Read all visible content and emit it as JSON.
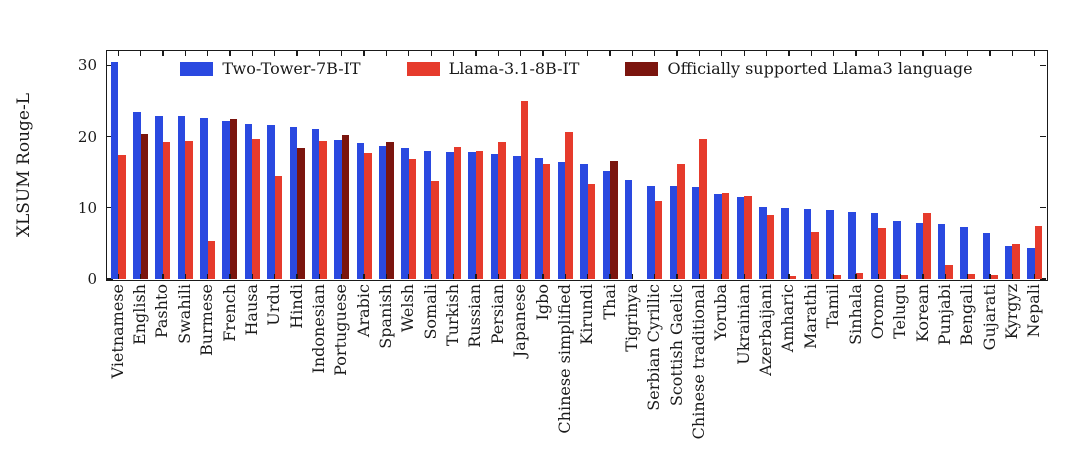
{
  "chart_data": {
    "type": "bar",
    "title": "",
    "ylabel": "XLSUM Rouge-L",
    "xlabel": "",
    "ylim": [
      0,
      32
    ],
    "yticks": [
      0,
      10,
      20,
      30
    ],
    "grid": false,
    "legend_position": "top-center",
    "legend": [
      {
        "label": "Two-Tower-7B-IT",
        "color": "#2a49e0"
      },
      {
        "label": "Llama-3.1-8B-IT",
        "color": "#e63b2c"
      },
      {
        "label": "Officially supported Llama3 language",
        "color": "#7b150e"
      }
    ],
    "categories": [
      "Vietnamese",
      "English",
      "Pashto",
      "Swahili",
      "Burmese",
      "French",
      "Hausa",
      "Urdu",
      "Hindi",
      "Indonesian",
      "Portuguese",
      "Arabic",
      "Spanish",
      "Welsh",
      "Somali",
      "Turkish",
      "Russian",
      "Persian",
      "Japanese",
      "Igbo",
      "Chinese simplified",
      "Kirundi",
      "Thai",
      "Tigrinya",
      "Serbian Cyrillic",
      "Scottish Gaelic",
      "Chinese traditional",
      "Yoruba",
      "Ukrainian",
      "Azerbaijani",
      "Amharic",
      "Marathi",
      "Tamil",
      "Sinhala",
      "Oromo",
      "Telugu",
      "Korean",
      "Punjabi",
      "Bengali",
      "Gujarati",
      "Kyrgyz",
      "Nepali"
    ],
    "series": [
      {
        "name": "Two-Tower-7B-IT",
        "color": "#2a49e0",
        "values": [
          30.5,
          23.4,
          22.9,
          22.9,
          22.6,
          22.2,
          21.7,
          21.6,
          21.4,
          21.0,
          19.5,
          19.1,
          18.7,
          18.4,
          18.0,
          17.8,
          17.8,
          17.5,
          17.2,
          17.0,
          16.4,
          16.2,
          15.1,
          13.9,
          13.1,
          13.0,
          12.9,
          11.9,
          11.5,
          10.1,
          9.9,
          9.8,
          9.7,
          9.4,
          9.2,
          8.1,
          7.8,
          7.7,
          7.3,
          6.5,
          4.6,
          4.3
        ]
      },
      {
        "name": "Llama-3.1-8B-IT",
        "color": "#e63b2c",
        "official_color": "#7b150e",
        "official_indices": [
          1,
          5,
          8,
          10,
          12,
          22
        ],
        "values": [
          17.4,
          20.4,
          19.2,
          19.4,
          5.4,
          22.4,
          19.6,
          14.5,
          18.4,
          19.3,
          20.2,
          17.7,
          19.2,
          16.8,
          13.8,
          18.5,
          17.9,
          19.2,
          25.0,
          16.1,
          20.6,
          13.4,
          16.6,
          0,
          10.9,
          16.1,
          19.6,
          12.1,
          11.6,
          9.0,
          0.4,
          6.6,
          0.5,
          0.8,
          7.2,
          0.6,
          9.3,
          2.0,
          0.7,
          0.5,
          4.9,
          7.5
        ]
      }
    ],
    "official_languages": [
      "English",
      "French",
      "Hindi",
      "Portuguese",
      "Spanish",
      "Thai"
    ]
  },
  "colors": {
    "axis": "#1a1a1a",
    "background": "#ffffff"
  }
}
